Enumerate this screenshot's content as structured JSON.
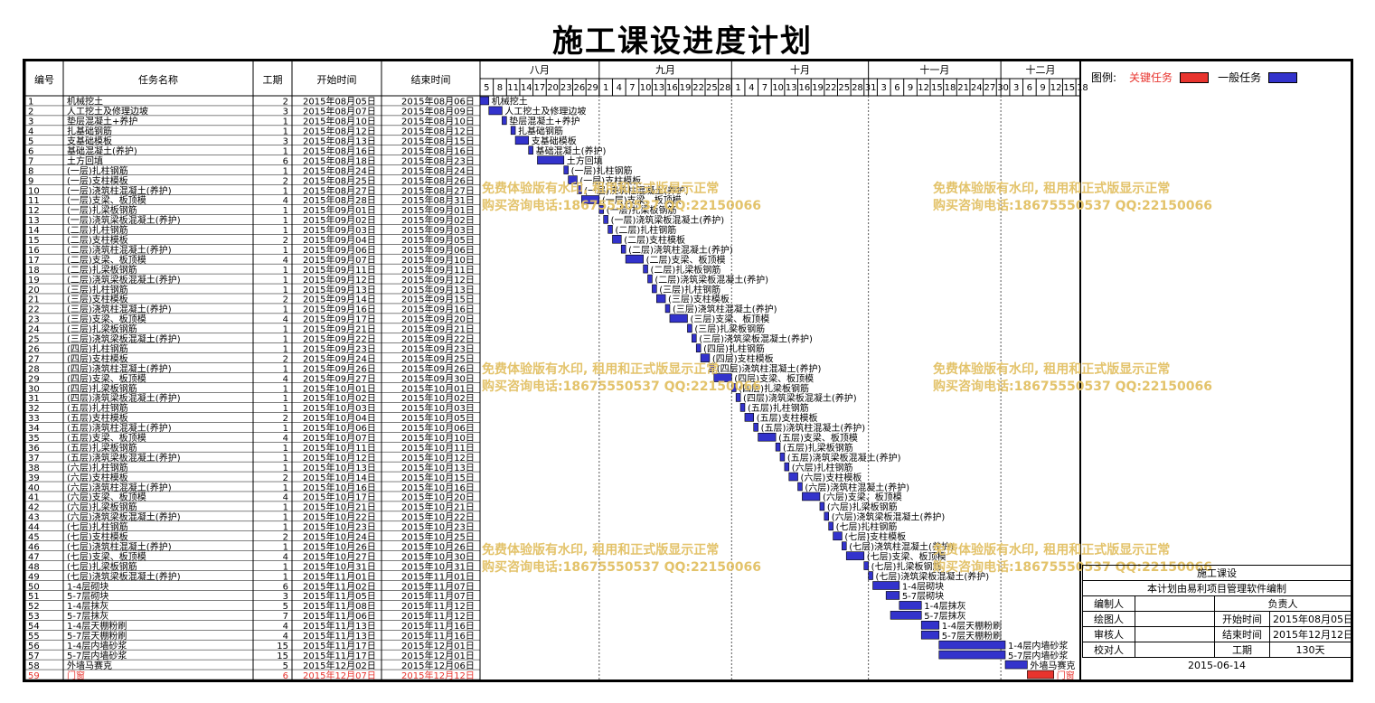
{
  "title": "施工课设进度计划",
  "columns": {
    "no": "编号",
    "name": "任务名称",
    "dur": "工期",
    "start": "开始时间",
    "end": "结束时间"
  },
  "timeline": {
    "months": [
      "八月",
      "九月",
      "十月",
      "十一月",
      "十二月"
    ],
    "day_ticks": [
      [
        "5",
        "8",
        "11",
        "14",
        "17",
        "20",
        "23",
        "26",
        "29"
      ],
      [
        "1",
        "4",
        "7",
        "10",
        "13",
        "16",
        "19",
        "22",
        "25",
        "28"
      ],
      [
        "1",
        "4",
        "7",
        "10",
        "13",
        "16",
        "19",
        "22",
        "25",
        "28",
        "31"
      ],
      [
        "3",
        "6",
        "9",
        "12",
        "15",
        "18",
        "21",
        "24",
        "27",
        "30"
      ],
      [
        "3",
        "6",
        "9",
        "12",
        "15",
        "18"
      ]
    ]
  },
  "legend": {
    "label": "图例:",
    "critical": "关键任务",
    "normal": "一般任务",
    "critical_color": "#e8342e",
    "normal_color": "#3333cc"
  },
  "watermark": {
    "line1": "免费体验版有水印, 租用和正式版显示正常",
    "line2": "购买咨询电话:18675550537 QQ:22150066"
  },
  "info": {
    "project": "施工课设",
    "note": "本计划由易利项目管理软件编制",
    "editor_label": "编制人",
    "editor": "",
    "manager_label": "负责人",
    "manager": "",
    "drawer_label": "绘图人",
    "drawer": "",
    "start_label": "开始时间",
    "start": "2015年08月05日",
    "reviewer_label": "审核人",
    "reviewer": "",
    "end_label": "结束时间",
    "end": "2015年12月12日",
    "checker_label": "校对人",
    "checker": "",
    "duration_label": "工期",
    "duration": "130天",
    "date": "2015-06-14"
  },
  "chart_data": {
    "type": "gantt",
    "title": "施工课设进度计划",
    "x_range": [
      "2015-08-05",
      "2015-12-19"
    ],
    "tasks": [
      {
        "id": "1",
        "name": "机械挖土",
        "dur": "2",
        "start": "2015年08月05日",
        "end": "2015年08月06日"
      },
      {
        "id": "2",
        "name": "人工挖土及修理边坡",
        "dur": "3",
        "start": "2015年08月07日",
        "end": "2015年08月09日"
      },
      {
        "id": "3",
        "name": "垫层混凝土+养护",
        "dur": "1",
        "start": "2015年08月10日",
        "end": "2015年08月10日"
      },
      {
        "id": "4",
        "name": "扎基础钢筋",
        "dur": "1",
        "start": "2015年08月12日",
        "end": "2015年08月12日"
      },
      {
        "id": "5",
        "name": "支基础模板",
        "dur": "3",
        "start": "2015年08月13日",
        "end": "2015年08月15日"
      },
      {
        "id": "6",
        "name": "基础混凝土(养护)",
        "dur": "1",
        "start": "2015年08月16日",
        "end": "2015年08月16日"
      },
      {
        "id": "7",
        "name": "土方回填",
        "dur": "6",
        "start": "2015年08月18日",
        "end": "2015年08月23日"
      },
      {
        "id": "8",
        "name": "(一层)扎柱钢筋",
        "dur": "1",
        "start": "2015年08月24日",
        "end": "2015年08月24日"
      },
      {
        "id": "9",
        "name": "(一层)支柱模板",
        "dur": "2",
        "start": "2015年08月25日",
        "end": "2015年08月26日"
      },
      {
        "id": "10",
        "name": "(一层)浇筑柱混凝土(养护)",
        "dur": "1",
        "start": "2015年08月27日",
        "end": "2015年08月27日"
      },
      {
        "id": "11",
        "name": "(一层)支梁、板顶模",
        "dur": "4",
        "start": "2015年08月28日",
        "end": "2015年08月31日"
      },
      {
        "id": "12",
        "name": "(一层)扎梁板钢筋",
        "dur": "1",
        "start": "2015年09月01日",
        "end": "2015年09月01日"
      },
      {
        "id": "13",
        "name": "(一层)浇筑梁板混凝土(养护)",
        "dur": "1",
        "start": "2015年09月02日",
        "end": "2015年09月02日"
      },
      {
        "id": "14",
        "name": "(二层)扎柱钢筋",
        "dur": "1",
        "start": "2015年09月03日",
        "end": "2015年09月03日"
      },
      {
        "id": "15",
        "name": "(二层)支柱模板",
        "dur": "2",
        "start": "2015年09月04日",
        "end": "2015年09月05日"
      },
      {
        "id": "16",
        "name": "(二层)浇筑柱混凝土(养护)",
        "dur": "1",
        "start": "2015年09月06日",
        "end": "2015年09月06日"
      },
      {
        "id": "17",
        "name": "(二层)支梁、板顶模",
        "dur": "4",
        "start": "2015年09月07日",
        "end": "2015年09月10日"
      },
      {
        "id": "18",
        "name": "(二层)扎梁板钢筋",
        "dur": "1",
        "start": "2015年09月11日",
        "end": "2015年09月11日"
      },
      {
        "id": "19",
        "name": "(二层)浇筑梁板混凝土(养护)",
        "dur": "1",
        "start": "2015年09月12日",
        "end": "2015年09月12日"
      },
      {
        "id": "20",
        "name": "(三层)扎柱钢筋",
        "dur": "1",
        "start": "2015年09月13日",
        "end": "2015年09月13日"
      },
      {
        "id": "21",
        "name": "(三层)支柱模板",
        "dur": "2",
        "start": "2015年09月14日",
        "end": "2015年09月15日"
      },
      {
        "id": "22",
        "name": "(三层)浇筑柱混凝土(养护)",
        "dur": "1",
        "start": "2015年09月16日",
        "end": "2015年09月16日"
      },
      {
        "id": "23",
        "name": "(三层)支梁、板顶模",
        "dur": "4",
        "start": "2015年09月17日",
        "end": "2015年09月20日"
      },
      {
        "id": "24",
        "name": "(三层)扎梁板钢筋",
        "dur": "1",
        "start": "2015年09月21日",
        "end": "2015年09月21日"
      },
      {
        "id": "25",
        "name": "(三层)浇筑梁板混凝土(养护)",
        "dur": "1",
        "start": "2015年09月22日",
        "end": "2015年09月22日"
      },
      {
        "id": "26",
        "name": "(四层)扎柱钢筋",
        "dur": "1",
        "start": "2015年09月23日",
        "end": "2015年09月23日"
      },
      {
        "id": "27",
        "name": "(四层)支柱模板",
        "dur": "2",
        "start": "2015年09月24日",
        "end": "2015年09月25日"
      },
      {
        "id": "28",
        "name": "(四层)浇筑柱混凝土(养护)",
        "dur": "1",
        "start": "2015年09月26日",
        "end": "2015年09月26日"
      },
      {
        "id": "29",
        "name": "(四层)支梁、板顶模",
        "dur": "4",
        "start": "2015年09月27日",
        "end": "2015年09月30日"
      },
      {
        "id": "30",
        "name": "(四层)扎梁板钢筋",
        "dur": "1",
        "start": "2015年10月01日",
        "end": "2015年10月01日"
      },
      {
        "id": "31",
        "name": "(四层)浇筑梁板混凝土(养护)",
        "dur": "1",
        "start": "2015年10月02日",
        "end": "2015年10月02日"
      },
      {
        "id": "32",
        "name": "(五层)扎柱钢筋",
        "dur": "1",
        "start": "2015年10月03日",
        "end": "2015年10月03日"
      },
      {
        "id": "33",
        "name": "(五层)支柱模板",
        "dur": "2",
        "start": "2015年10月04日",
        "end": "2015年10月05日"
      },
      {
        "id": "34",
        "name": "(五层)浇筑柱混凝土(养护)",
        "dur": "1",
        "start": "2015年10月06日",
        "end": "2015年10月06日"
      },
      {
        "id": "35",
        "name": "(五层)支梁、板顶模",
        "dur": "4",
        "start": "2015年10月07日",
        "end": "2015年10月10日"
      },
      {
        "id": "36",
        "name": "(五层)扎梁板钢筋",
        "dur": "1",
        "start": "2015年10月11日",
        "end": "2015年10月11日"
      },
      {
        "id": "37",
        "name": "(五层)浇筑梁板混凝土(养护)",
        "dur": "1",
        "start": "2015年10月12日",
        "end": "2015年10月12日"
      },
      {
        "id": "38",
        "name": "(六层)扎柱钢筋",
        "dur": "1",
        "start": "2015年10月13日",
        "end": "2015年10月13日"
      },
      {
        "id": "39",
        "name": "(六层)支柱模板",
        "dur": "2",
        "start": "2015年10月14日",
        "end": "2015年10月15日"
      },
      {
        "id": "40",
        "name": "(六层)浇筑柱混凝土(养护)",
        "dur": "1",
        "start": "2015年10月16日",
        "end": "2015年10月16日"
      },
      {
        "id": "41",
        "name": "(六层)支梁、板顶模",
        "dur": "4",
        "start": "2015年10月17日",
        "end": "2015年10月20日"
      },
      {
        "id": "42",
        "name": "(六层)扎梁板钢筋",
        "dur": "1",
        "start": "2015年10月21日",
        "end": "2015年10月21日"
      },
      {
        "id": "43",
        "name": "(六层)浇筑梁板混凝土(养护)",
        "dur": "1",
        "start": "2015年10月22日",
        "end": "2015年10月22日"
      },
      {
        "id": "44",
        "name": "(七层)扎柱钢筋",
        "dur": "1",
        "start": "2015年10月23日",
        "end": "2015年10月23日"
      },
      {
        "id": "45",
        "name": "(七层)支柱模板",
        "dur": "2",
        "start": "2015年10月24日",
        "end": "2015年10月25日"
      },
      {
        "id": "46",
        "name": "(七层)浇筑柱混凝土(养护)",
        "dur": "1",
        "start": "2015年10月26日",
        "end": "2015年10月26日"
      },
      {
        "id": "47",
        "name": "(七层)支梁、板顶模",
        "dur": "4",
        "start": "2015年10月27日",
        "end": "2015年10月30日"
      },
      {
        "id": "48",
        "name": "(七层)扎梁板钢筋",
        "dur": "1",
        "start": "2015年10月31日",
        "end": "2015年10月31日"
      },
      {
        "id": "49",
        "name": "(七层)浇筑梁板混凝土(养护)",
        "dur": "1",
        "start": "2015年11月01日",
        "end": "2015年11月01日"
      },
      {
        "id": "50",
        "name": "1-4层砌块",
        "dur": "6",
        "start": "2015年11月02日",
        "end": "2015年11月07日"
      },
      {
        "id": "51",
        "name": "5-7层砌块",
        "dur": "3",
        "start": "2015年11月05日",
        "end": "2015年11月07日"
      },
      {
        "id": "52",
        "name": "1-4层抹灰",
        "dur": "5",
        "start": "2015年11月08日",
        "end": "2015年11月12日"
      },
      {
        "id": "53",
        "name": "5-7层抹灰",
        "dur": "7",
        "start": "2015年11月06日",
        "end": "2015年11月12日"
      },
      {
        "id": "54",
        "name": "1-4层天棚粉刷",
        "dur": "4",
        "start": "2015年11月13日",
        "end": "2015年11月16日"
      },
      {
        "id": "55",
        "name": "5-7层天棚粉刷",
        "dur": "4",
        "start": "2015年11月13日",
        "end": "2015年11月16日"
      },
      {
        "id": "56",
        "name": "1-4层内墙砂浆",
        "dur": "15",
        "start": "2015年11月17日",
        "end": "2015年12月01日"
      },
      {
        "id": "57",
        "name": "5-7层内墙砂浆",
        "dur": "15",
        "start": "2015年11月17日",
        "end": "2015年12月01日"
      },
      {
        "id": "58",
        "name": "外墙马赛克",
        "dur": "5",
        "start": "2015年12月02日",
        "end": "2015年12月06日"
      },
      {
        "id": "59",
        "name": "门窗",
        "dur": "6",
        "start": "2015年12月07日",
        "end": "2015年12月12日",
        "critical": true
      }
    ]
  }
}
